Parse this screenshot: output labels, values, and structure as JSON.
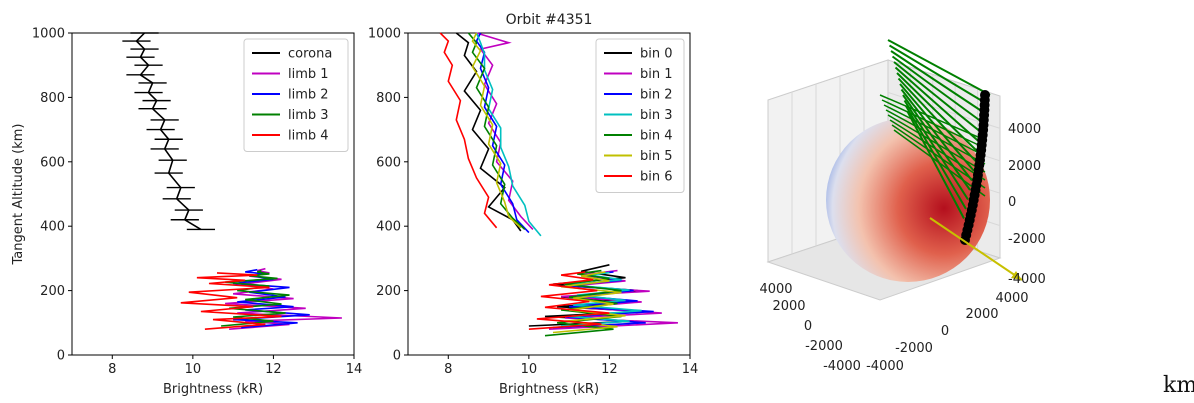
{
  "chart_data": [
    {
      "type": "line",
      "xlabel": "Brightness (kR)",
      "ylabel": "Tangent Altitude (km)",
      "xlim": [
        7,
        14
      ],
      "ylim": [
        0,
        1000
      ],
      "xticks": [
        8,
        10,
        12,
        14
      ],
      "yticks": [
        0,
        200,
        400,
        600,
        800,
        1000
      ],
      "legend": "top-right",
      "series": [
        {
          "name": "corona",
          "color": "#000000",
          "errorbars": true,
          "x": [
            10.2,
            9.8,
            9.9,
            9.6,
            9.7,
            9.4,
            9.5,
            9.3,
            9.4,
            9.2,
            9.3,
            9.0,
            9.1,
            8.9,
            9.0,
            8.7,
            8.9,
            8.7,
            8.8,
            8.6,
            8.8
          ],
          "y": [
            390,
            420,
            450,
            485,
            520,
            565,
            605,
            640,
            670,
            700,
            730,
            765,
            790,
            815,
            845,
            870,
            900,
            925,
            950,
            975,
            1000
          ],
          "xerr": 0.35
        },
        {
          "name": "limb 1",
          "color": "#c000c0",
          "x": [
            10.9,
            12.4,
            11.3,
            13.7,
            11.1,
            12.8,
            10.8,
            12.5,
            11.0,
            12.0,
            11.2,
            12.2,
            11.4,
            11.9,
            11.6,
            11.8
          ],
          "y": [
            80,
            95,
            105,
            115,
            130,
            145,
            160,
            175,
            190,
            205,
            220,
            235,
            245,
            255,
            262,
            268
          ]
        },
        {
          "name": "limb 2",
          "color": "#0000ff",
          "x": [
            11.2,
            12.6,
            11.0,
            12.9,
            11.3,
            12.5,
            11.1,
            12.3,
            11.4,
            12.4,
            11.0,
            12.0,
            11.5,
            11.8,
            11.3,
            11.6
          ],
          "y": [
            85,
            100,
            110,
            125,
            140,
            150,
            165,
            180,
            195,
            210,
            222,
            235,
            245,
            252,
            258,
            265
          ]
        },
        {
          "name": "limb 3",
          "color": "#008000",
          "x": [
            10.7,
            12.0,
            11.0,
            12.3,
            10.9,
            12.2,
            11.3,
            12.4,
            11.1,
            11.9,
            10.8,
            12.1,
            11.4,
            11.9,
            11.6,
            11.7
          ],
          "y": [
            90,
            105,
            118,
            130,
            145,
            158,
            172,
            186,
            200,
            214,
            226,
            238,
            246,
            252,
            258,
            262
          ]
        },
        {
          "name": "limb 4",
          "color": "#ff0000",
          "x": [
            10.3,
            11.8,
            10.5,
            12.2,
            10.2,
            11.5,
            9.7,
            11.1,
            9.9,
            11.9,
            10.4,
            11.3,
            10.1,
            11.6,
            10.6
          ],
          "y": [
            80,
            95,
            110,
            120,
            135,
            150,
            162,
            178,
            195,
            210,
            222,
            232,
            240,
            248,
            255
          ]
        }
      ]
    },
    {
      "type": "line",
      "title": "Orbit #4351",
      "xlabel": "Brightness (kR)",
      "xlim": [
        7,
        14
      ],
      "ylim": [
        0,
        1000
      ],
      "xticks": [
        8,
        10,
        12,
        14
      ],
      "yticks": [
        0,
        200,
        400,
        600,
        800,
        1000
      ],
      "legend": "top-right",
      "series": [
        {
          "name": "bin 0",
          "color": "#000000",
          "x": [
            9.8,
            9.6,
            9.0,
            9.4,
            8.8,
            9.0,
            8.6,
            8.8,
            8.4,
            8.7,
            8.4,
            8.5,
            8.2
          ],
          "y": [
            385,
            420,
            460,
            520,
            580,
            640,
            700,
            760,
            820,
            880,
            930,
            970,
            1000
          ],
          "x2": [
            10.0,
            12.6,
            10.4,
            12.9,
            10.7,
            12.5,
            10.8,
            12.7,
            10.6,
            12.4,
            11.3,
            12.0
          ],
          "y2": [
            90,
            105,
            120,
            135,
            150,
            165,
            180,
            200,
            220,
            240,
            260,
            280
          ]
        },
        {
          "name": "bin 1",
          "color": "#c000c0",
          "x": [
            10.1,
            9.8,
            9.5,
            9.6,
            9.2,
            9.3,
            9.0,
            9.2,
            8.9,
            9.1,
            8.8,
            9.5,
            8.7
          ],
          "y": [
            390,
            430,
            480,
            540,
            600,
            660,
            720,
            780,
            840,
            900,
            950,
            970,
            1000
          ],
          "x2": [
            10.5,
            13.7,
            10.9,
            13.3,
            11.2,
            12.8,
            10.8,
            13.0,
            11.0,
            12.4,
            11.3,
            12.2
          ],
          "y2": [
            80,
            100,
            115,
            130,
            148,
            165,
            182,
            198,
            214,
            230,
            248,
            262
          ]
        },
        {
          "name": "bin 2",
          "color": "#0000ff",
          "x": [
            10.0,
            9.7,
            9.6,
            9.3,
            9.4,
            9.1,
            9.2,
            8.9,
            9.0,
            8.8,
            8.9,
            8.7,
            8.8
          ],
          "y": [
            380,
            420,
            470,
            530,
            590,
            650,
            710,
            770,
            830,
            890,
            940,
            975,
            1000
          ],
          "x2": [
            10.6,
            12.9,
            10.9,
            13.1,
            11.0,
            12.7,
            11.2,
            12.6,
            10.9,
            12.3,
            11.4,
            12.1
          ],
          "y2": [
            85,
            100,
            118,
            135,
            150,
            168,
            184,
            200,
            216,
            232,
            248,
            258
          ]
        },
        {
          "name": "bin 3",
          "color": "#00c0c0",
          "x": [
            10.3,
            10.0,
            9.9,
            9.6,
            9.5,
            9.3,
            9.3,
            9.0,
            9.1,
            8.9,
            8.9,
            8.8,
            8.7
          ],
          "y": [
            370,
            415,
            465,
            525,
            585,
            645,
            705,
            765,
            825,
            885,
            935,
            970,
            1000
          ],
          "x2": [
            10.8,
            12.5,
            11.0,
            12.8,
            11.1,
            12.4,
            11.2,
            12.5,
            11.0,
            12.3,
            11.5,
            12.0
          ],
          "y2": [
            90,
            105,
            120,
            138,
            155,
            170,
            186,
            202,
            218,
            234,
            248,
            256
          ]
        },
        {
          "name": "bin 4",
          "color": "#008000",
          "x": [
            9.9,
            9.6,
            9.3,
            9.4,
            9.1,
            9.2,
            8.9,
            9.0,
            8.7,
            8.9,
            8.6,
            8.7,
            8.5
          ],
          "y": [
            390,
            425,
            470,
            530,
            590,
            650,
            710,
            770,
            830,
            890,
            940,
            970,
            1000
          ],
          "x2": [
            10.4,
            12.1,
            10.7,
            12.3,
            10.8,
            12.2,
            11.0,
            12.3,
            10.9,
            12.0,
            11.2,
            11.8
          ],
          "y2": [
            60,
            80,
            100,
            120,
            140,
            160,
            180,
            200,
            220,
            238,
            252,
            262
          ]
        },
        {
          "name": "bin 5",
          "color": "#c0c000",
          "x": [
            9.8,
            9.5,
            9.4,
            9.2,
            9.3,
            9.0,
            9.1,
            8.8,
            8.9,
            8.6,
            8.8,
            8.6,
            8.7
          ],
          "y": [
            395,
            430,
            475,
            535,
            595,
            655,
            715,
            775,
            835,
            895,
            945,
            975,
            1000
          ],
          "x2": [
            10.6,
            12.2,
            10.9,
            12.4,
            11.0,
            12.1,
            11.1,
            12.3,
            10.8,
            12.0,
            11.3,
            11.9
          ],
          "y2": [
            70,
            88,
            105,
            122,
            140,
            158,
            176,
            194,
            212,
            230,
            245,
            258
          ]
        },
        {
          "name": "bin 6",
          "color": "#ff0000",
          "x": [
            9.2,
            8.9,
            9.0,
            8.7,
            8.5,
            8.4,
            8.2,
            8.3,
            8.0,
            8.1,
            7.9,
            8.0,
            7.8
          ],
          "y": [
            395,
            440,
            490,
            550,
            610,
            670,
            730,
            790,
            850,
            900,
            940,
            975,
            1000
          ],
          "x2": [
            10.0,
            11.8,
            10.2,
            12.0,
            10.4,
            11.5,
            10.3,
            11.7,
            10.5,
            11.6,
            10.8,
            11.4
          ],
          "y2": [
            80,
            96,
            112,
            130,
            148,
            166,
            182,
            200,
            218,
            234,
            248,
            258
          ]
        }
      ]
    },
    {
      "type": "scatter",
      "subtype": "3d",
      "xticks": [
        -4000,
        -2000,
        0,
        2000,
        4000
      ],
      "yticks": [
        -4000,
        -2000,
        0,
        2000,
        4000
      ],
      "zticks": [
        -4000,
        -2000,
        0,
        2000,
        4000
      ],
      "elements": [
        "sphere",
        "orbit-points",
        "lines-of-sight",
        "pointing-vector"
      ],
      "colors": {
        "orbit": "#000000",
        "los": "#008000",
        "vector": "#c8c000"
      }
    }
  ],
  "footer": {
    "unit_text": "km"
  }
}
